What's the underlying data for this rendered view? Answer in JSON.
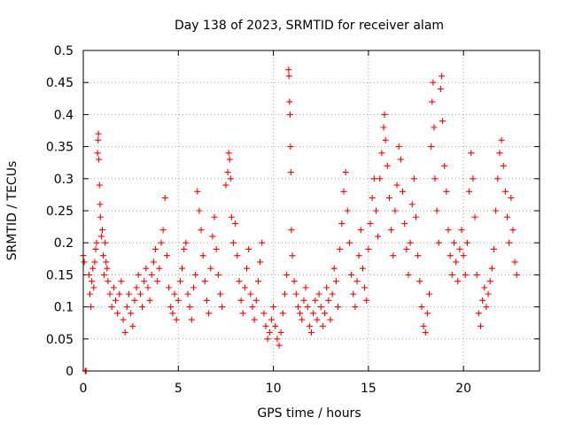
{
  "chart_data": {
    "type": "scatter",
    "title": "Day 138 of 2023, SRMTID for receiver alam",
    "xlabel": "GPS time / hours",
    "ylabel": "SRMTID / TECUs",
    "xlim": [
      0,
      24
    ],
    "ylim": [
      0,
      0.5
    ],
    "xticks": [
      0,
      5,
      10,
      15,
      20
    ],
    "xtick_labels": [
      "0",
      "5",
      "10",
      "15",
      "20"
    ],
    "yticks": [
      0,
      0.05,
      0.1,
      0.15,
      0.2,
      0.25,
      0.3,
      0.35,
      0.4,
      0.45,
      0.5
    ],
    "ytick_labels": [
      "0",
      "0.05",
      "0.1",
      "0.15",
      "0.2",
      "0.25",
      "0.3",
      "0.35",
      "0.4",
      "0.45",
      "0.5"
    ],
    "grid": true,
    "marker": "+",
    "color": "#ff0000",
    "x_range_of_data": [
      0,
      22.8
    ],
    "series": [
      {
        "name": "SRMTID",
        "points": [
          [
            0.0,
            0.18
          ],
          [
            0.05,
            0.17
          ],
          [
            0.1,
            0.0
          ],
          [
            0.12,
            0.0
          ],
          [
            0.15,
            0.0
          ],
          [
            0.3,
            0.15
          ],
          [
            0.35,
            0.12
          ],
          [
            0.4,
            0.1
          ],
          [
            0.45,
            0.14
          ],
          [
            0.5,
            0.16
          ],
          [
            0.55,
            0.13
          ],
          [
            0.6,
            0.17
          ],
          [
            0.65,
            0.19
          ],
          [
            0.7,
            0.2
          ],
          [
            0.75,
            0.34
          ],
          [
            0.78,
            0.36
          ],
          [
            0.8,
            0.37
          ],
          [
            0.82,
            0.33
          ],
          [
            0.85,
            0.29
          ],
          [
            0.88,
            0.26
          ],
          [
            0.9,
            0.24
          ],
          [
            0.95,
            0.21
          ],
          [
            1.0,
            0.22
          ],
          [
            1.05,
            0.18
          ],
          [
            1.1,
            0.15
          ],
          [
            1.15,
            0.2
          ],
          [
            1.2,
            0.17
          ],
          [
            1.25,
            0.16
          ],
          [
            1.3,
            0.14
          ],
          [
            1.4,
            0.12
          ],
          [
            1.5,
            0.1
          ],
          [
            1.6,
            0.13
          ],
          [
            1.7,
            0.11
          ],
          [
            1.8,
            0.09
          ],
          [
            1.9,
            0.12
          ],
          [
            2.0,
            0.14
          ],
          [
            2.1,
            0.08
          ],
          [
            2.2,
            0.06
          ],
          [
            2.3,
            0.1
          ],
          [
            2.4,
            0.12
          ],
          [
            2.5,
            0.09
          ],
          [
            2.6,
            0.07
          ],
          [
            2.7,
            0.11
          ],
          [
            2.8,
            0.13
          ],
          [
            2.9,
            0.15
          ],
          [
            3.0,
            0.12
          ],
          [
            3.1,
            0.1
          ],
          [
            3.2,
            0.14
          ],
          [
            3.3,
            0.16
          ],
          [
            3.4,
            0.13
          ],
          [
            3.5,
            0.11
          ],
          [
            3.6,
            0.15
          ],
          [
            3.7,
            0.17
          ],
          [
            3.8,
            0.19
          ],
          [
            3.9,
            0.14
          ],
          [
            4.0,
            0.16
          ],
          [
            4.1,
            0.2
          ],
          [
            4.2,
            0.22
          ],
          [
            4.3,
            0.27
          ],
          [
            4.4,
            0.18
          ],
          [
            4.5,
            0.13
          ],
          [
            4.6,
            0.1
          ],
          [
            4.7,
            0.09
          ],
          [
            4.8,
            0.12
          ],
          [
            4.9,
            0.08
          ],
          [
            5.0,
            0.11
          ],
          [
            5.1,
            0.14
          ],
          [
            5.2,
            0.16
          ],
          [
            5.3,
            0.19
          ],
          [
            5.4,
            0.2
          ],
          [
            5.5,
            0.12
          ],
          [
            5.6,
            0.1
          ],
          [
            5.7,
            0.08
          ],
          [
            5.8,
            0.13
          ],
          [
            5.9,
            0.15
          ],
          [
            6.0,
            0.28
          ],
          [
            6.1,
            0.25
          ],
          [
            6.2,
            0.22
          ],
          [
            6.3,
            0.18
          ],
          [
            6.4,
            0.14
          ],
          [
            6.5,
            0.11
          ],
          [
            6.6,
            0.09
          ],
          [
            6.7,
            0.16
          ],
          [
            6.8,
            0.21
          ],
          [
            6.9,
            0.24
          ],
          [
            7.0,
            0.19
          ],
          [
            7.1,
            0.15
          ],
          [
            7.2,
            0.12
          ],
          [
            7.3,
            0.1
          ],
          [
            7.5,
            0.29
          ],
          [
            7.6,
            0.31
          ],
          [
            7.65,
            0.34
          ],
          [
            7.7,
            0.33
          ],
          [
            7.75,
            0.3
          ],
          [
            7.8,
            0.24
          ],
          [
            7.9,
            0.2
          ],
          [
            8.0,
            0.23
          ],
          [
            8.1,
            0.18
          ],
          [
            8.2,
            0.14
          ],
          [
            8.3,
            0.11
          ],
          [
            8.4,
            0.09
          ],
          [
            8.5,
            0.13
          ],
          [
            8.6,
            0.16
          ],
          [
            8.7,
            0.19
          ],
          [
            8.8,
            0.12
          ],
          [
            8.9,
            0.1
          ],
          [
            9.0,
            0.08
          ],
          [
            9.1,
            0.11
          ],
          [
            9.2,
            0.14
          ],
          [
            9.3,
            0.17
          ],
          [
            9.4,
            0.2
          ],
          [
            9.5,
            0.09
          ],
          [
            9.6,
            0.07
          ],
          [
            9.7,
            0.05
          ],
          [
            9.8,
            0.06
          ],
          [
            9.9,
            0.08
          ],
          [
            10.0,
            0.1
          ],
          [
            10.1,
            0.07
          ],
          [
            10.2,
            0.05
          ],
          [
            10.3,
            0.04
          ],
          [
            10.4,
            0.06
          ],
          [
            10.5,
            0.09
          ],
          [
            10.6,
            0.12
          ],
          [
            10.7,
            0.15
          ],
          [
            10.8,
            0.47
          ],
          [
            10.82,
            0.46
          ],
          [
            10.85,
            0.42
          ],
          [
            10.88,
            0.4
          ],
          [
            10.9,
            0.35
          ],
          [
            10.92,
            0.31
          ],
          [
            10.95,
            0.22
          ],
          [
            11.0,
            0.18
          ],
          [
            11.1,
            0.14
          ],
          [
            11.2,
            0.12
          ],
          [
            11.3,
            0.1
          ],
          [
            11.4,
            0.09
          ],
          [
            11.5,
            0.08
          ],
          [
            11.6,
            0.11
          ],
          [
            11.7,
            0.13
          ],
          [
            11.8,
            0.1
          ],
          [
            11.9,
            0.07
          ],
          [
            12.0,
            0.06
          ],
          [
            12.1,
            0.09
          ],
          [
            12.2,
            0.11
          ],
          [
            12.3,
            0.08
          ],
          [
            12.4,
            0.12
          ],
          [
            12.5,
            0.1
          ],
          [
            12.6,
            0.07
          ],
          [
            12.7,
            0.09
          ],
          [
            12.8,
            0.13
          ],
          [
            12.9,
            0.11
          ],
          [
            13.0,
            0.08
          ],
          [
            13.1,
            0.12
          ],
          [
            13.2,
            0.16
          ],
          [
            13.3,
            0.14
          ],
          [
            13.4,
            0.1
          ],
          [
            13.5,
            0.19
          ],
          [
            13.6,
            0.23
          ],
          [
            13.7,
            0.28
          ],
          [
            13.8,
            0.31
          ],
          [
            13.9,
            0.25
          ],
          [
            14.0,
            0.2
          ],
          [
            14.1,
            0.15
          ],
          [
            14.2,
            0.12
          ],
          [
            14.3,
            0.1
          ],
          [
            14.4,
            0.14
          ],
          [
            14.5,
            0.18
          ],
          [
            14.6,
            0.22
          ],
          [
            14.7,
            0.16
          ],
          [
            14.8,
            0.13
          ],
          [
            14.9,
            0.11
          ],
          [
            15.0,
            0.19
          ],
          [
            15.1,
            0.23
          ],
          [
            15.2,
            0.27
          ],
          [
            15.3,
            0.3
          ],
          [
            15.4,
            0.25
          ],
          [
            15.5,
            0.21
          ],
          [
            15.6,
            0.3
          ],
          [
            15.7,
            0.34
          ],
          [
            15.8,
            0.38
          ],
          [
            15.85,
            0.4
          ],
          [
            15.9,
            0.36
          ],
          [
            16.0,
            0.32
          ],
          [
            16.1,
            0.27
          ],
          [
            16.2,
            0.22
          ],
          [
            16.3,
            0.18
          ],
          [
            16.4,
            0.25
          ],
          [
            16.5,
            0.29
          ],
          [
            16.6,
            0.35
          ],
          [
            16.7,
            0.33
          ],
          [
            16.8,
            0.28
          ],
          [
            16.9,
            0.23
          ],
          [
            17.0,
            0.19
          ],
          [
            17.1,
            0.15
          ],
          [
            17.2,
            0.2
          ],
          [
            17.3,
            0.26
          ],
          [
            17.4,
            0.3
          ],
          [
            17.5,
            0.24
          ],
          [
            17.6,
            0.18
          ],
          [
            17.7,
            0.14
          ],
          [
            17.8,
            0.1
          ],
          [
            17.9,
            0.07
          ],
          [
            18.0,
            0.06
          ],
          [
            18.1,
            0.09
          ],
          [
            18.2,
            0.12
          ],
          [
            18.3,
            0.35
          ],
          [
            18.35,
            0.42
          ],
          [
            18.4,
            0.45
          ],
          [
            18.45,
            0.38
          ],
          [
            18.5,
            0.3
          ],
          [
            18.6,
            0.25
          ],
          [
            18.7,
            0.2
          ],
          [
            18.8,
            0.44
          ],
          [
            18.85,
            0.46
          ],
          [
            18.9,
            0.39
          ],
          [
            19.0,
            0.32
          ],
          [
            19.1,
            0.28
          ],
          [
            19.2,
            0.22
          ],
          [
            19.3,
            0.18
          ],
          [
            19.4,
            0.15
          ],
          [
            19.5,
            0.2
          ],
          [
            19.6,
            0.17
          ],
          [
            19.7,
            0.14
          ],
          [
            19.8,
            0.19
          ],
          [
            19.9,
            0.22
          ],
          [
            20.0,
            0.18
          ],
          [
            20.1,
            0.15
          ],
          [
            20.2,
            0.2
          ],
          [
            20.3,
            0.28
          ],
          [
            20.4,
            0.34
          ],
          [
            20.5,
            0.3
          ],
          [
            20.6,
            0.24
          ],
          [
            20.7,
            0.15
          ],
          [
            20.8,
            0.09
          ],
          [
            20.9,
            0.07
          ],
          [
            21.0,
            0.11
          ],
          [
            21.1,
            0.13
          ],
          [
            21.2,
            0.1
          ],
          [
            21.3,
            0.12
          ],
          [
            21.4,
            0.14
          ],
          [
            21.5,
            0.16
          ],
          [
            21.6,
            0.19
          ],
          [
            21.7,
            0.25
          ],
          [
            21.8,
            0.3
          ],
          [
            21.9,
            0.34
          ],
          [
            22.0,
            0.36
          ],
          [
            22.1,
            0.32
          ],
          [
            22.2,
            0.28
          ],
          [
            22.3,
            0.24
          ],
          [
            22.4,
            0.2
          ],
          [
            22.5,
            0.27
          ],
          [
            22.6,
            0.22
          ],
          [
            22.7,
            0.17
          ],
          [
            22.8,
            0.15
          ]
        ]
      }
    ]
  }
}
